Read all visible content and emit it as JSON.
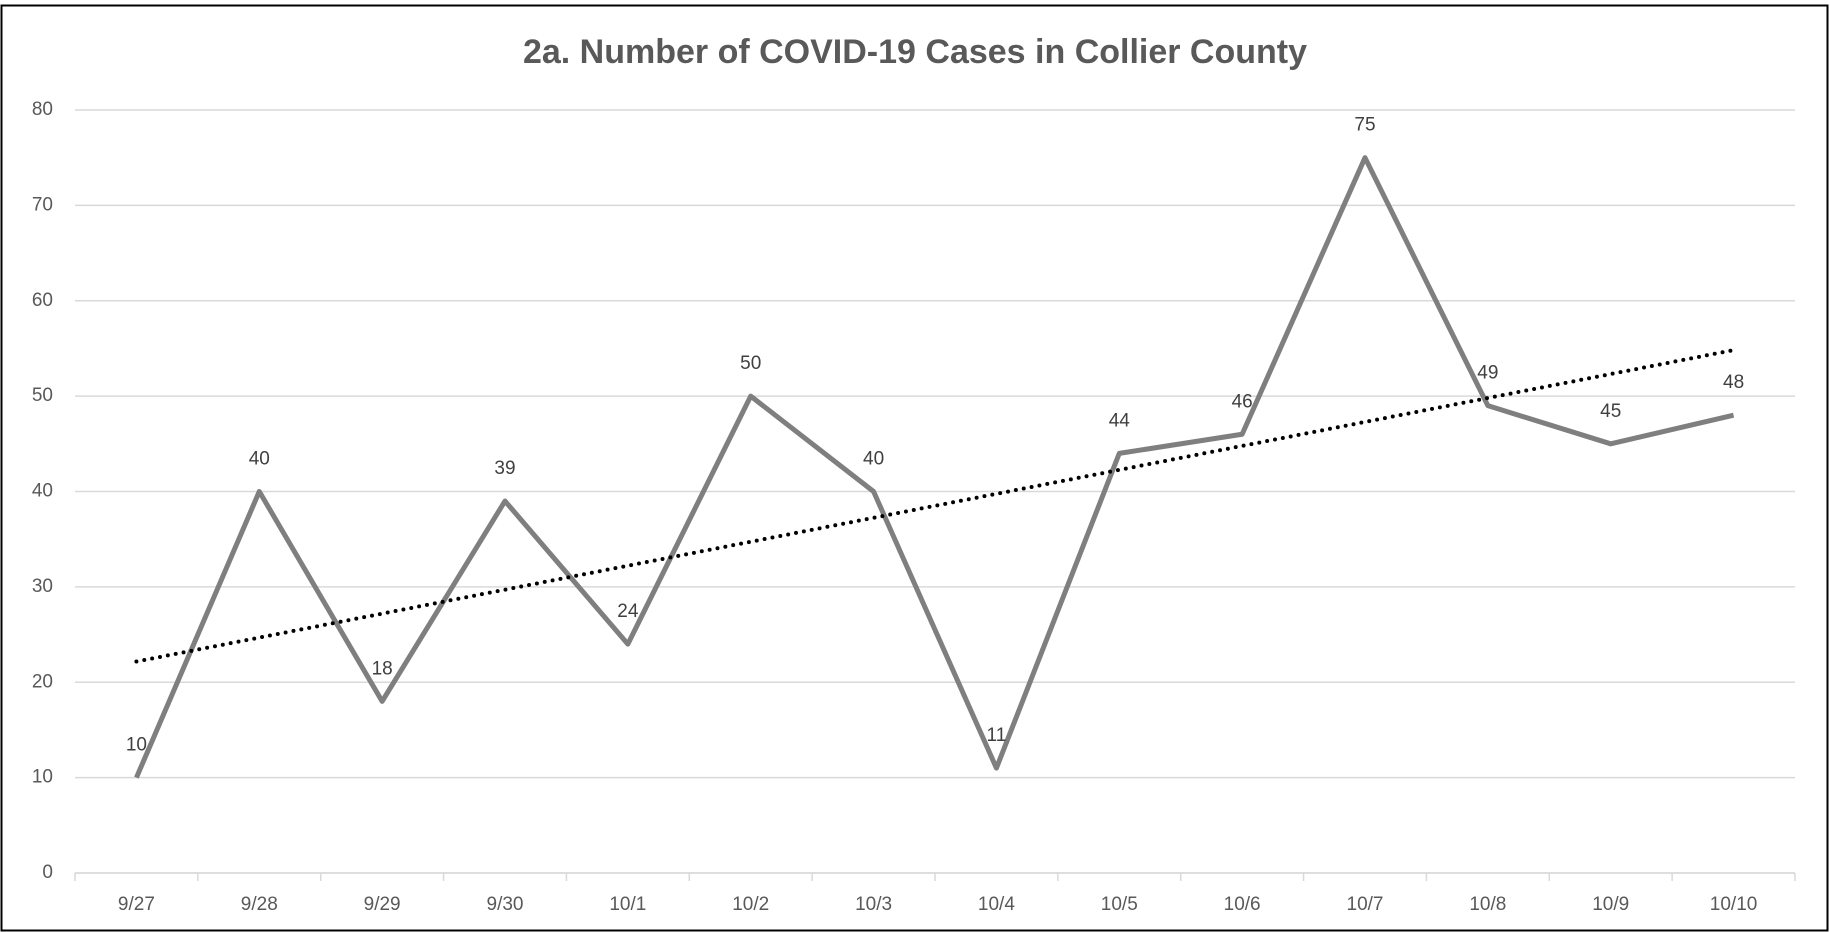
{
  "chart_data": {
    "type": "line",
    "title": "2a. Number of COVID-19 Cases in Collier County",
    "categories": [
      "9/27",
      "9/28",
      "9/29",
      "9/30",
      "10/1",
      "10/2",
      "10/3",
      "10/4",
      "10/5",
      "10/6",
      "10/7",
      "10/8",
      "10/9",
      "10/10"
    ],
    "series": [
      {
        "color": "#7f7f7f",
        "values": [
          10,
          40,
          18,
          39,
          24,
          50,
          40,
          11,
          44,
          46,
          75,
          49,
          45,
          48
        ]
      }
    ],
    "trendline": "linear",
    "trendline_color": "#000000",
    "ylim": [
      0,
      80
    ],
    "yticks": [
      0,
      10,
      20,
      30,
      40,
      50,
      60,
      70,
      80
    ],
    "grid": true
  }
}
